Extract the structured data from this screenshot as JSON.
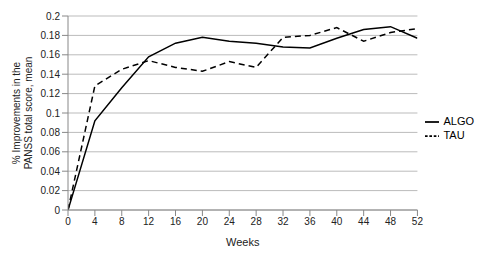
{
  "chart_data": {
    "type": "line",
    "x_label": "Weeks",
    "y_label": "% Improvements in the PANSS total score, mean",
    "x": [
      0,
      4,
      8,
      12,
      16,
      20,
      24,
      28,
      32,
      36,
      40,
      44,
      48,
      52
    ],
    "series": [
      {
        "name": "ALGO",
        "color": "#000000",
        "line_style": "solid",
        "values": [
          0,
          0.092,
          0.126,
          0.158,
          0.172,
          0.178,
          0.174,
          0.172,
          0.168,
          0.167,
          0.177,
          0.186,
          0.189,
          0.177
        ]
      },
      {
        "name": "TAU",
        "color": "#000000",
        "line_style": "dashed",
        "values": [
          0,
          0.128,
          0.145,
          0.154,
          0.147,
          0.143,
          0.153,
          0.147,
          0.178,
          0.18,
          0.188,
          0.174,
          0.183,
          0.187
        ]
      }
    ],
    "xlim": [
      0,
      52
    ],
    "xticks": [
      0,
      4,
      8,
      12,
      16,
      20,
      24,
      28,
      32,
      36,
      40,
      44,
      48,
      52
    ],
    "ylim": [
      0,
      0.2
    ],
    "yticks": [
      0,
      0.02,
      0.04,
      0.06,
      0.08,
      0.1,
      0.12,
      0.14,
      0.16,
      0.18,
      0.2
    ],
    "grid": true,
    "legend": "right"
  }
}
